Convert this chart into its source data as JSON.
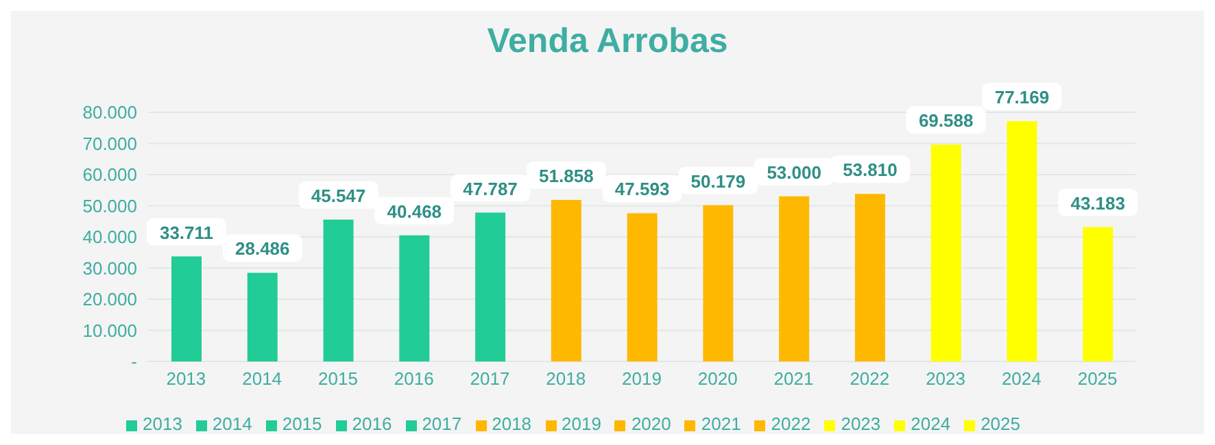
{
  "chart_data": {
    "type": "bar",
    "title": "Venda Arrobas",
    "stacked": true,
    "categories": [
      "2013",
      "2014",
      "2015",
      "2016",
      "2017",
      "2018",
      "2019",
      "2020",
      "2021",
      "2022",
      "2023",
      "2024",
      "2025"
    ],
    "series": [
      {
        "name": "2013",
        "color": "#22cc96",
        "values": [
          33711,
          null,
          null,
          null,
          null,
          null,
          null,
          null,
          null,
          null,
          null,
          null,
          null
        ],
        "value_labels": [
          "33.711",
          null,
          null,
          null,
          null,
          null,
          null,
          null,
          null,
          null,
          null,
          null,
          null
        ]
      },
      {
        "name": "2014",
        "color": "#22cc96",
        "values": [
          null,
          28486,
          null,
          null,
          null,
          null,
          null,
          null,
          null,
          null,
          null,
          null,
          null
        ],
        "value_labels": [
          null,
          "28.486",
          null,
          null,
          null,
          null,
          null,
          null,
          null,
          null,
          null,
          null,
          null
        ]
      },
      {
        "name": "2015",
        "color": "#22cc96",
        "values": [
          null,
          null,
          45547,
          null,
          null,
          null,
          null,
          null,
          null,
          null,
          null,
          null,
          null
        ],
        "value_labels": [
          null,
          null,
          "45.547",
          null,
          null,
          null,
          null,
          null,
          null,
          null,
          null,
          null,
          null
        ]
      },
      {
        "name": "2016",
        "color": "#22cc96",
        "values": [
          null,
          null,
          null,
          40468,
          null,
          null,
          null,
          null,
          null,
          null,
          null,
          null,
          null
        ],
        "value_labels": [
          null,
          null,
          null,
          "40.468",
          null,
          null,
          null,
          null,
          null,
          null,
          null,
          null,
          null
        ]
      },
      {
        "name": "2017",
        "color": "#22cc96",
        "values": [
          null,
          null,
          null,
          null,
          47787,
          null,
          null,
          null,
          null,
          null,
          null,
          null,
          null
        ],
        "value_labels": [
          null,
          null,
          null,
          null,
          "47.787",
          null,
          null,
          null,
          null,
          null,
          null,
          null,
          null
        ]
      },
      {
        "name": "2018",
        "color": "#ffb800",
        "values": [
          null,
          null,
          null,
          null,
          null,
          51858,
          null,
          null,
          null,
          null,
          null,
          null,
          null
        ],
        "value_labels": [
          null,
          null,
          null,
          null,
          null,
          "51.858",
          null,
          null,
          null,
          null,
          null,
          null,
          null
        ]
      },
      {
        "name": "2019",
        "color": "#ffb800",
        "values": [
          null,
          null,
          null,
          null,
          null,
          null,
          47593,
          null,
          null,
          null,
          null,
          null,
          null
        ],
        "value_labels": [
          null,
          null,
          null,
          null,
          null,
          null,
          "47.593",
          null,
          null,
          null,
          null,
          null,
          null
        ]
      },
      {
        "name": "2020",
        "color": "#ffb800",
        "values": [
          null,
          null,
          null,
          null,
          null,
          null,
          null,
          50179,
          null,
          null,
          null,
          null,
          null
        ],
        "value_labels": [
          null,
          null,
          null,
          null,
          null,
          null,
          null,
          "50.179",
          null,
          null,
          null,
          null,
          null
        ]
      },
      {
        "name": "2021",
        "color": "#ffb800",
        "values": [
          null,
          null,
          null,
          null,
          null,
          null,
          null,
          null,
          53000,
          null,
          null,
          null,
          null
        ],
        "value_labels": [
          null,
          null,
          null,
          null,
          null,
          null,
          null,
          null,
          "53.000",
          null,
          null,
          null,
          null
        ]
      },
      {
        "name": "2022",
        "color": "#ffb800",
        "values": [
          null,
          null,
          null,
          null,
          null,
          null,
          null,
          null,
          null,
          53810,
          null,
          null,
          null
        ],
        "value_labels": [
          null,
          null,
          null,
          null,
          null,
          null,
          null,
          null,
          null,
          "53.810",
          null,
          null,
          null
        ]
      },
      {
        "name": "2023",
        "color": "#ffff00",
        "values": [
          null,
          null,
          null,
          null,
          null,
          null,
          null,
          null,
          null,
          null,
          69588,
          null,
          null
        ],
        "value_labels": [
          null,
          null,
          null,
          null,
          null,
          null,
          null,
          null,
          null,
          null,
          "69.588",
          null,
          null
        ]
      },
      {
        "name": "2024",
        "color": "#ffff00",
        "values": [
          null,
          null,
          null,
          null,
          null,
          null,
          null,
          null,
          null,
          null,
          null,
          77169,
          null
        ],
        "value_labels": [
          null,
          null,
          null,
          null,
          null,
          null,
          null,
          null,
          null,
          null,
          null,
          "77.169",
          null
        ]
      },
      {
        "name": "2025",
        "color": "#ffff00",
        "values": [
          null,
          null,
          null,
          null,
          null,
          null,
          null,
          null,
          null,
          null,
          null,
          null,
          43183
        ],
        "value_labels": [
          null,
          null,
          null,
          null,
          null,
          null,
          null,
          null,
          null,
          null,
          null,
          null,
          "43.183"
        ]
      }
    ],
    "ylim": [
      0,
      80000
    ],
    "yticks": [
      {
        "value": 0,
        "label": "-"
      },
      {
        "value": 10000,
        "label": "10.000"
      },
      {
        "value": 20000,
        "label": "20.000"
      },
      {
        "value": 30000,
        "label": "30.000"
      },
      {
        "value": 40000,
        "label": "40.000"
      },
      {
        "value": 50000,
        "label": "50.000"
      },
      {
        "value": 60000,
        "label": "60.000"
      },
      {
        "value": 70000,
        "label": "70.000"
      },
      {
        "value": 80000,
        "label": "80.000"
      }
    ],
    "grid": "y",
    "legend": "bottom"
  }
}
